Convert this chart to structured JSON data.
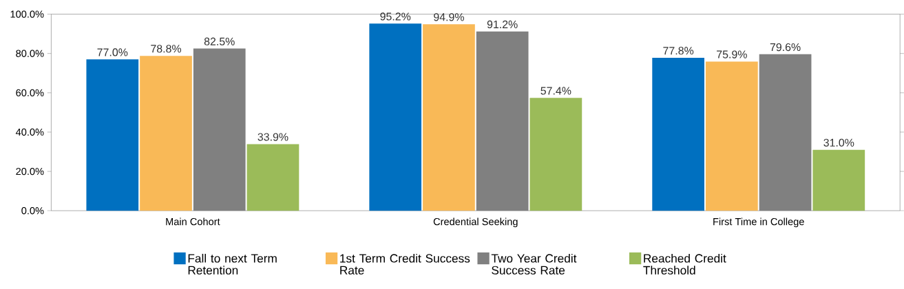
{
  "chart_data": {
    "type": "bar",
    "categories": [
      "Main Cohort",
      "Credential Seeking",
      "First Time in College"
    ],
    "series": [
      {
        "name": "Fall to next Term Retention",
        "color": "#0070c0",
        "values": [
          77.0,
          95.2,
          77.8
        ],
        "value_labels": [
          "77.0%",
          "95.2%",
          "77.8%"
        ]
      },
      {
        "name": "1st Term Credit Success Rate",
        "color": "#f9b957",
        "values": [
          78.8,
          94.9,
          75.9
        ],
        "value_labels": [
          "78.8%",
          "94.9%",
          "75.9%"
        ]
      },
      {
        "name": "Two Year Credit Success Rate",
        "color": "#808080",
        "values": [
          82.5,
          91.2,
          79.6
        ],
        "value_labels": [
          "82.5%",
          "91.2%",
          "79.6%"
        ]
      },
      {
        "name": "Reached Credit Threshold",
        "color": "#9bbb59",
        "values": [
          33.9,
          57.4,
          31.0
        ],
        "value_labels": [
          "33.9%",
          "57.4%",
          "31.0%"
        ]
      }
    ],
    "ylim": [
      0,
      100
    ],
    "yticks": [
      {
        "value": 0,
        "label": "0.0%"
      },
      {
        "value": 20,
        "label": "20.0%"
      },
      {
        "value": 40,
        "label": "40.0%"
      },
      {
        "value": 60,
        "label": "60.0%"
      },
      {
        "value": 80,
        "label": "80.0%"
      },
      {
        "value": 100,
        "label": "100.0%"
      }
    ],
    "legend": "bottom",
    "grid": false
  }
}
